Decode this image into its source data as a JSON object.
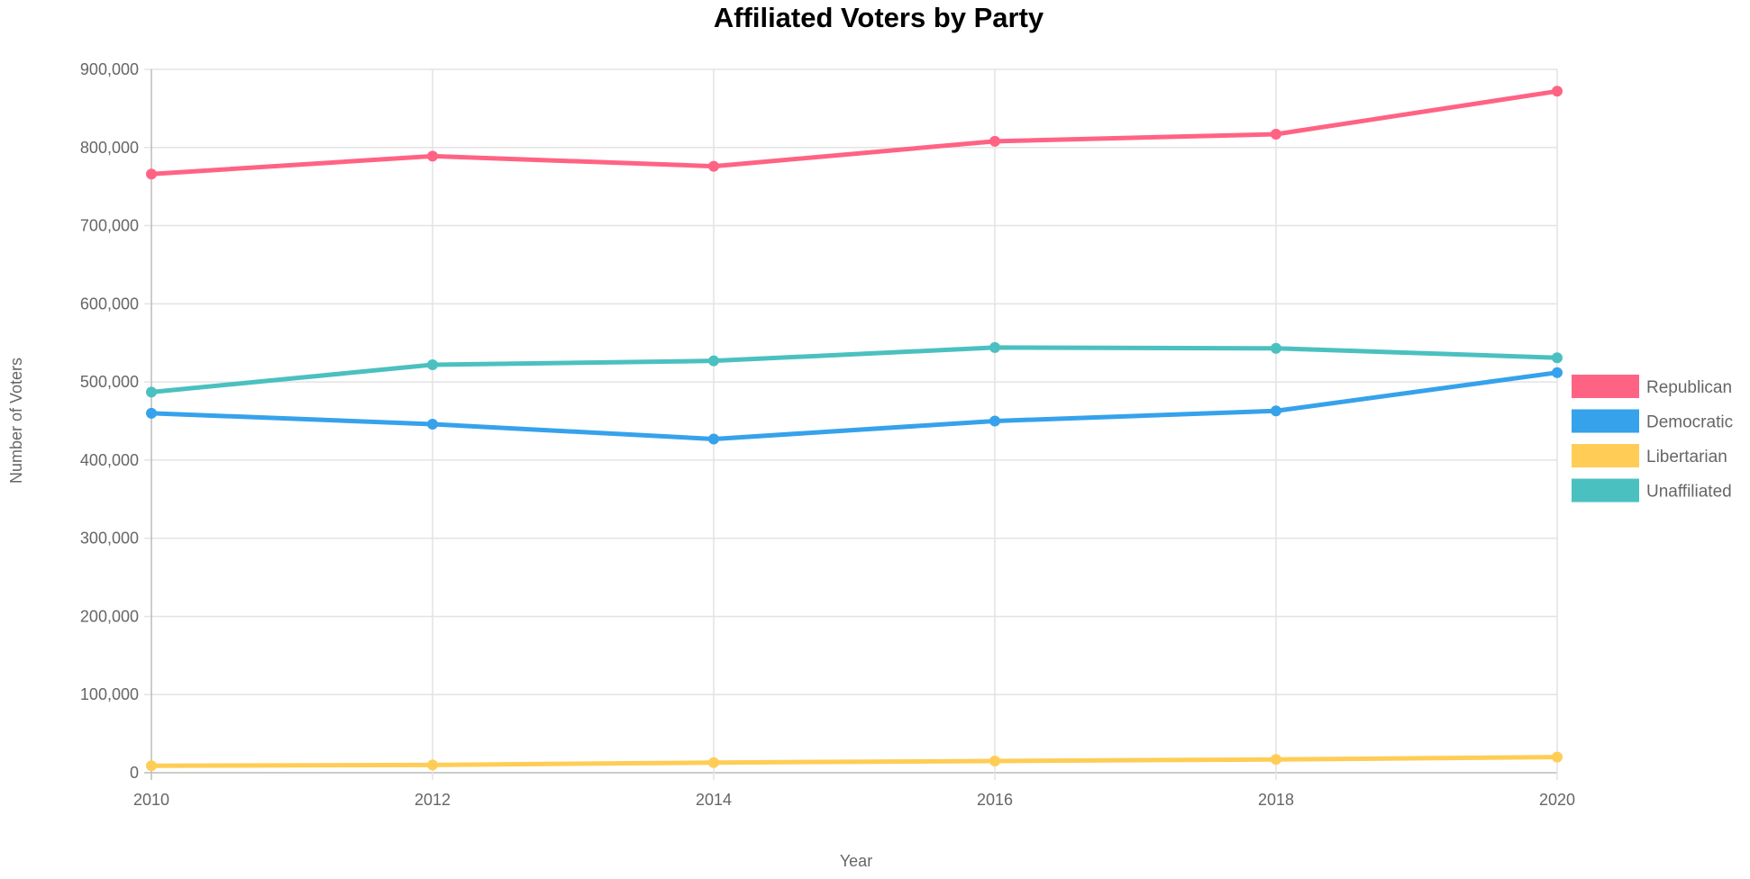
{
  "chart_data": {
    "type": "line",
    "title": "Affiliated Voters by Party",
    "xlabel": "Year",
    "ylabel": "Number of Voters",
    "x": [
      "2010",
      "2012",
      "2014",
      "2016",
      "2018",
      "2020"
    ],
    "ylim": [
      0,
      900000
    ],
    "yticks": [
      "0",
      "100,000",
      "200,000",
      "300,000",
      "400,000",
      "500,000",
      "600,000",
      "700,000",
      "800,000",
      "900,000"
    ],
    "grid": true,
    "legend_position": "right",
    "series": [
      {
        "name": "Republican",
        "color": "#ff6384",
        "values": [
          766000,
          789000,
          776000,
          808000,
          817000,
          872000
        ]
      },
      {
        "name": "Democratic",
        "color": "#36a2eb",
        "values": [
          460000,
          446000,
          427000,
          450000,
          463000,
          512000
        ]
      },
      {
        "name": "Libertarian",
        "color": "#ffcd56",
        "values": [
          9000,
          10000,
          13000,
          15000,
          17000,
          20000
        ]
      },
      {
        "name": "Unaffiliated",
        "color": "#4bc0c0",
        "values": [
          487000,
          522000,
          527000,
          544000,
          543000,
          531000
        ]
      }
    ]
  }
}
